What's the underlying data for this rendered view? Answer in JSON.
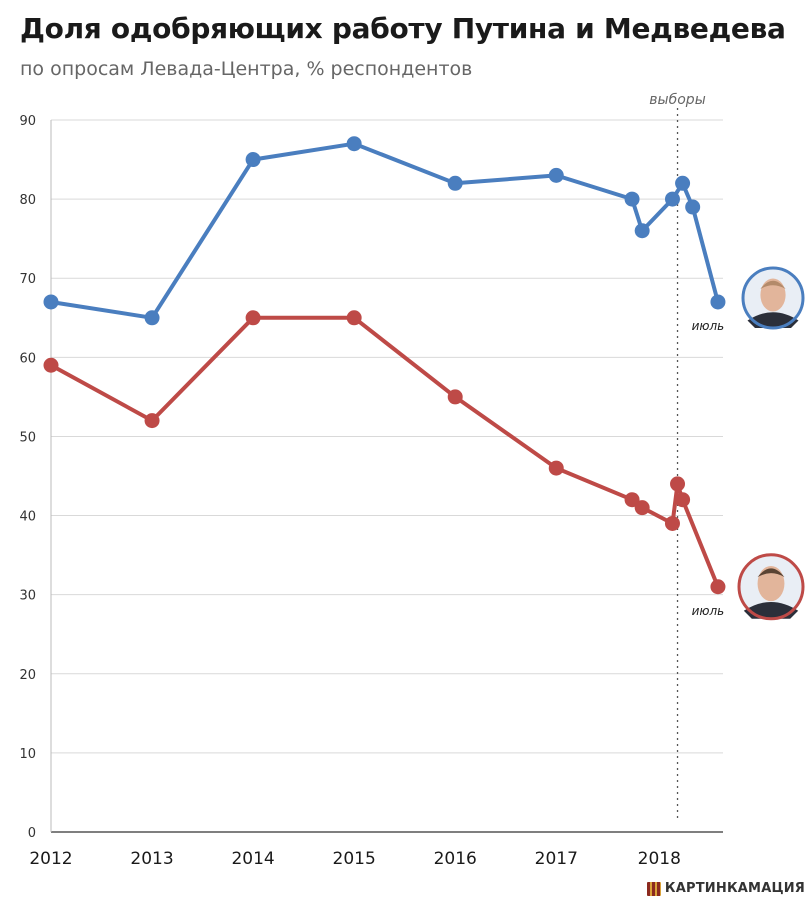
{
  "chart_data": {
    "type": "line",
    "title": "Доля одобряющих работу Путина и Медведева",
    "subtitle": "по опросам Левада-Центра, % респондентов",
    "ylim": [
      0,
      90
    ],
    "yticks": [
      0,
      10,
      20,
      30,
      40,
      50,
      60,
      70,
      80,
      90
    ],
    "xlim": [
      2012,
      2018.65
    ],
    "xticks": [
      2012,
      2013,
      2014,
      2015,
      2016,
      2017,
      2018
    ],
    "grid": true,
    "annotation": {
      "label": "выборы",
      "x": 2018.2
    },
    "series": [
      {
        "name": "Путин",
        "color": "#4a7ebf",
        "end_label": "июль",
        "points": [
          [
            2012.0,
            67
          ],
          [
            2013.0,
            65
          ],
          [
            2014.0,
            85
          ],
          [
            2015.0,
            87
          ],
          [
            2016.0,
            82
          ],
          [
            2017.0,
            83
          ],
          [
            2017.75,
            80
          ],
          [
            2017.85,
            76
          ],
          [
            2018.15,
            80
          ],
          [
            2018.25,
            82
          ],
          [
            2018.35,
            79
          ],
          [
            2018.6,
            67
          ]
        ]
      },
      {
        "name": "Медведев",
        "color": "#be4a47",
        "end_label": "июль",
        "points": [
          [
            2012.0,
            59
          ],
          [
            2013.0,
            52
          ],
          [
            2014.0,
            65
          ],
          [
            2015.0,
            65
          ],
          [
            2016.0,
            55
          ],
          [
            2017.0,
            46
          ],
          [
            2017.75,
            42
          ],
          [
            2017.85,
            41
          ],
          [
            2018.15,
            39
          ],
          [
            2018.2,
            44
          ],
          [
            2018.25,
            42
          ],
          [
            2018.6,
            31
          ]
        ]
      }
    ]
  },
  "branding": {
    "label": "КАРТИНКАМАЦИЯ"
  }
}
